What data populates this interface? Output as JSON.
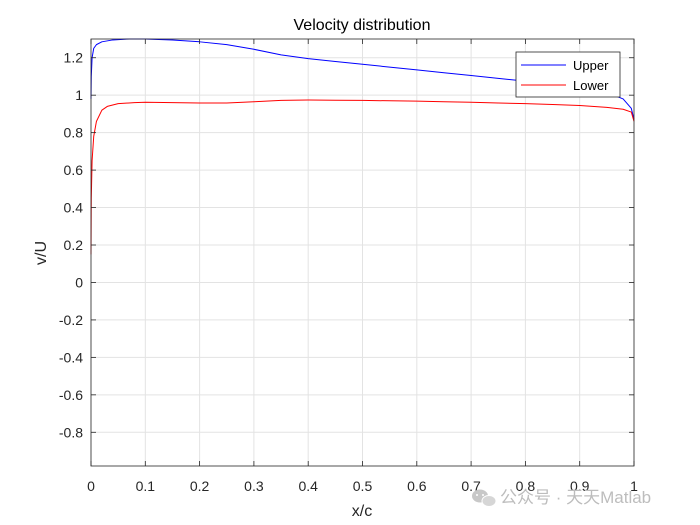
{
  "chart_data": {
    "type": "line",
    "title": "Velocity distribution",
    "xlabel": "x/c",
    "ylabel": "v/U",
    "xlim": [
      0,
      1
    ],
    "ylim": [
      -0.98,
      1.3
    ],
    "xticks": [
      0,
      0.1,
      0.2,
      0.3,
      0.4,
      0.5,
      0.6,
      0.7,
      0.8,
      0.9,
      1
    ],
    "xtick_labels": [
      "0",
      "0.1",
      "0.2",
      "0.3",
      "0.4",
      "0.5",
      "0.6",
      "0.7",
      "0.8",
      "0.9",
      "1"
    ],
    "yticks": [
      1.2,
      1,
      0.8,
      0.6,
      0.4,
      0.2,
      0,
      -0.2,
      -0.4,
      -0.6,
      -0.8
    ],
    "ytick_labels": [
      "1.2",
      "1",
      "0.8",
      "0.6",
      "0.4",
      "0.2",
      "0",
      "-0.2",
      "-0.4",
      "-0.6",
      "-0.8"
    ],
    "grid": true,
    "legend_position": "top-right",
    "series": [
      {
        "name": "Upper",
        "color": "#0000ff",
        "x": [
          0,
          0.0005,
          0.002,
          0.005,
          0.01,
          0.02,
          0.04,
          0.07,
          0.1,
          0.15,
          0.2,
          0.25,
          0.3,
          0.35,
          0.4,
          0.45,
          0.5,
          0.55,
          0.6,
          0.65,
          0.7,
          0.75,
          0.8,
          0.85,
          0.9,
          0.95,
          0.98,
          0.995,
          1.0
        ],
        "y": [
          0.98,
          1.1,
          1.2,
          1.25,
          1.27,
          1.285,
          1.295,
          1.3,
          1.3,
          1.295,
          1.285,
          1.27,
          1.245,
          1.215,
          1.195,
          1.18,
          1.165,
          1.15,
          1.135,
          1.12,
          1.105,
          1.09,
          1.075,
          1.06,
          1.04,
          1.015,
          0.98,
          0.93,
          0.87
        ]
      },
      {
        "name": "Lower",
        "color": "#ff0000",
        "x": [
          0,
          0.0005,
          0.002,
          0.005,
          0.01,
          0.02,
          0.03,
          0.05,
          0.08,
          0.1,
          0.15,
          0.2,
          0.25,
          0.3,
          0.35,
          0.4,
          0.45,
          0.5,
          0.55,
          0.6,
          0.65,
          0.7,
          0.75,
          0.8,
          0.85,
          0.9,
          0.95,
          0.98,
          0.995,
          1.0
        ],
        "y": [
          0.15,
          0.45,
          0.65,
          0.78,
          0.86,
          0.92,
          0.94,
          0.955,
          0.96,
          0.962,
          0.96,
          0.958,
          0.958,
          0.965,
          0.972,
          0.974,
          0.973,
          0.972,
          0.97,
          0.968,
          0.965,
          0.962,
          0.958,
          0.955,
          0.95,
          0.945,
          0.935,
          0.925,
          0.91,
          0.86
        ]
      }
    ]
  },
  "watermark": {
    "text": "公众号 · 天天Matlab",
    "icon": "wechat-icon"
  }
}
